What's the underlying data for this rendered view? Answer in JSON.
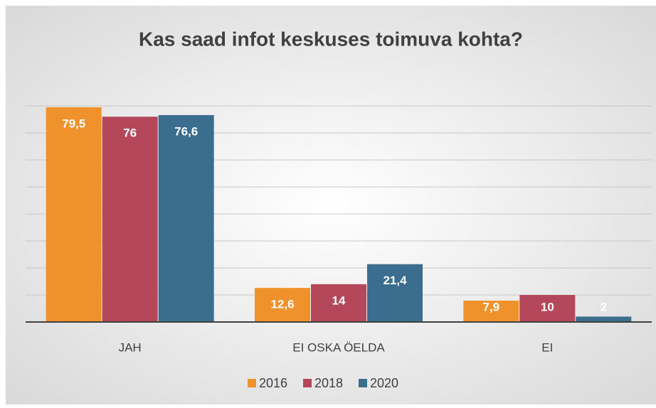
{
  "chart_data": {
    "type": "bar",
    "title": "Kas saad infot keskuses toimuva kohta?",
    "categories": [
      "JAH",
      "EI OSKA ÖELDA",
      "EI"
    ],
    "series": [
      {
        "name": "2016",
        "color": "#f0922b",
        "values": [
          79.5,
          12.6,
          7.9
        ],
        "value_labels": [
          "79,5",
          "12,6",
          "7,9"
        ]
      },
      {
        "name": "2018",
        "color": "#b4475a",
        "values": [
          76,
          14,
          10
        ],
        "value_labels": [
          "76",
          "14",
          "10"
        ]
      },
      {
        "name": "2020",
        "color": "#3b6e8e",
        "values": [
          76.6,
          21.4,
          2
        ],
        "value_labels": [
          "76,6",
          "21,4",
          "2"
        ]
      }
    ],
    "ylim": [
      0,
      80
    ],
    "yticks": [
      0,
      10,
      20,
      30,
      40,
      50,
      60,
      70,
      80
    ],
    "grid": true,
    "legend": "bottom"
  }
}
